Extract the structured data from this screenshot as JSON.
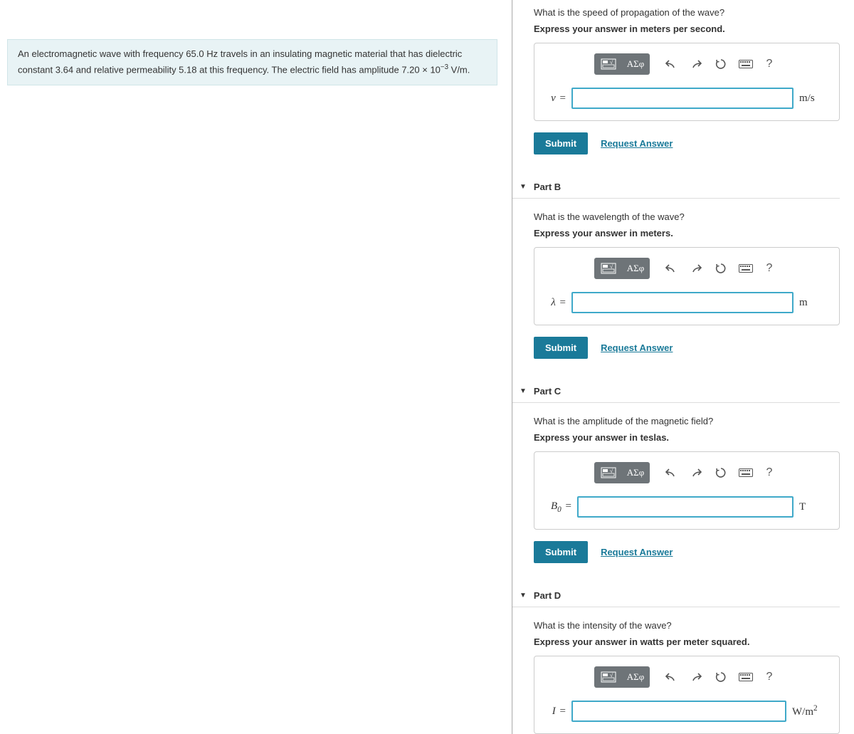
{
  "problem": {
    "html": "An electromagnetic wave with frequency 65.0 Hz travels in an insulating magnetic material that has dielectric constant 3.64 and relative permeability 5.18 at this frequency. The electric field has amplitude 7.20 × 10<sup>−3</sup> V/m."
  },
  "toolbar": {
    "greek_label": "ΑΣφ"
  },
  "actions": {
    "submit": "Submit",
    "request": "Request Answer"
  },
  "partA": {
    "question": "What is the speed of propagation of the wave?",
    "instruction": "Express your answer in meters per second.",
    "var_html": "<i>v</i> <span class='eq'>=</span>",
    "unit_html": "m/s"
  },
  "partB": {
    "title": "Part B",
    "question": "What is the wavelength of the wave?",
    "instruction": "Express your answer in meters.",
    "var_html": "<i>λ</i> <span class='eq'>=</span>",
    "unit_html": "m"
  },
  "partC": {
    "title": "Part C",
    "question": "What is the amplitude of the magnetic field?",
    "instruction": "Express your answer in teslas.",
    "var_html": "<i>B</i><sub>0</sub> <span class='eq'>=</span>",
    "unit_html": "T"
  },
  "partD": {
    "title": "Part D",
    "question": "What is the intensity of the wave?",
    "instruction": "Express your answer in watts per meter squared.",
    "var_html": "<i>I</i> <span class='eq'>=</span>",
    "unit_html": "W/m<sup>2</sup>"
  }
}
